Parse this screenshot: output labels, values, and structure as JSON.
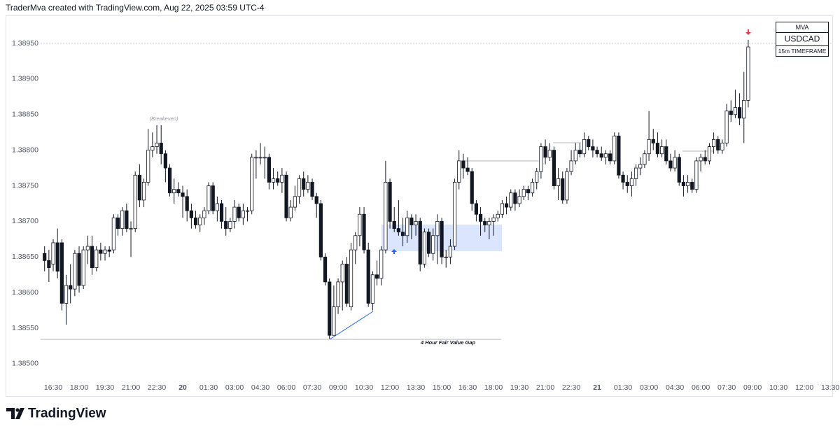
{
  "header": "TraderMva created with TradingView.com, Aug 22, 2025 03:59 UTC-4",
  "footer": "TradingView",
  "chart_data": {
    "type": "candlestick",
    "info_box": [
      "MVA",
      "USDCAD",
      "15m TIMEFRAME"
    ],
    "annotations": [
      "(Breakeven)",
      "4 Hour Fair Value Gap"
    ],
    "up_color": "#ffffff",
    "down_color": "#131722",
    "wick_color": "#131722",
    "grid": false,
    "ylim": [
      1.38475,
      1.3899
    ],
    "yticks": [
      {
        "value": 1.385,
        "label": "1.38500"
      },
      {
        "value": 1.3855,
        "label": "1.38550"
      },
      {
        "value": 1.386,
        "label": "1.38600"
      },
      {
        "value": 1.3865,
        "label": "1.38650"
      },
      {
        "value": 1.387,
        "label": "1.38700"
      },
      {
        "value": 1.3875,
        "label": "1.38750"
      },
      {
        "value": 1.388,
        "label": "1.38800"
      },
      {
        "value": 1.3885,
        "label": "1.38850"
      },
      {
        "value": 1.389,
        "label": "1.38900"
      },
      {
        "value": 1.3895,
        "label": "1.38950"
      }
    ],
    "categories": [
      null,
      null,
      "16:30",
      null,
      null,
      null,
      null,
      null,
      "18:00",
      null,
      null,
      null,
      null,
      null,
      "19:30",
      null,
      null,
      null,
      null,
      null,
      "21:00",
      null,
      null,
      null,
      null,
      null,
      "22:30",
      null,
      null,
      null,
      null,
      null,
      "20",
      null,
      null,
      null,
      null,
      null,
      "01:30",
      null,
      null,
      null,
      null,
      null,
      "03:00",
      null,
      null,
      null,
      null,
      null,
      "04:30",
      null,
      null,
      null,
      null,
      null,
      "06:00",
      null,
      null,
      null,
      null,
      null,
      "07:30",
      null,
      null,
      null,
      null,
      null,
      "09:00",
      null,
      null,
      null,
      null,
      null,
      "10:30",
      null,
      null,
      null,
      null,
      null,
      "12:00",
      null,
      null,
      null,
      null,
      null,
      "13:30",
      null,
      null,
      null,
      null,
      null,
      "15:00",
      null,
      null,
      null,
      null,
      null,
      "16:30",
      null,
      null,
      null,
      null,
      null,
      "18:00",
      null,
      null,
      null,
      null,
      null,
      "19:30",
      null,
      null,
      null,
      null,
      null,
      "21:00",
      null,
      null,
      null,
      null,
      null,
      "22:30",
      null,
      null,
      null,
      null,
      null,
      "21",
      null,
      null,
      null,
      null,
      null,
      "01:30",
      null,
      null,
      null,
      null,
      null,
      "03:00",
      null,
      null,
      null,
      null,
      null,
      "04:30",
      null,
      null,
      null,
      null,
      null,
      "06:00",
      null,
      null,
      null,
      null,
      null,
      "07:30",
      null,
      null,
      null,
      null,
      null,
      "09:00",
      null,
      null,
      null,
      null,
      null,
      "10:30",
      null,
      null,
      null,
      null,
      null,
      "12:00",
      null,
      null,
      null,
      null,
      null,
      "13:30"
    ],
    "open": [
      1.38655,
      1.38645,
      1.3864,
      1.3867,
      1.3867,
      1.38585,
      1.3861,
      1.38605,
      1.38655,
      1.3861,
      1.3866,
      1.38665,
      1.38635,
      1.3866,
      1.38655,
      1.3866,
      1.3866,
      1.38705,
      1.3869,
      1.38715,
      1.3869,
      1.3869,
      1.38765,
      1.3873,
      1.38755,
      1.388,
      1.38805,
      1.3881,
      1.38795,
      1.38775,
      1.3874,
      1.38745,
      1.3874,
      1.38735,
      1.38715,
      1.38705,
      1.38695,
      1.38705,
      1.38715,
      1.3875,
      1.38715,
      1.38725,
      1.387,
      1.3869,
      1.387,
      1.3872,
      1.38705,
      1.38715,
      1.38715,
      1.3879,
      1.3879,
      1.3879,
      1.3879,
      1.38755,
      1.3876,
      1.38755,
      1.38765,
      1.38705,
      1.3872,
      1.38735,
      1.3876,
      1.38745,
      1.38755,
      1.38735,
      1.38725,
      1.3865,
      1.38615,
      1.3854,
      1.3858,
      1.38615,
      1.3864,
      1.3858,
      1.3866,
      1.3868,
      1.3871,
      1.3866,
      1.38585,
      1.38625,
      1.3862,
      1.3866,
      1.38755,
      1.387,
      1.3869,
      1.38685,
      1.3868,
      1.38705,
      1.38695,
      1.387,
      1.3864,
      1.38685,
      1.38655,
      1.3868,
      1.387,
      1.3865,
      1.3865,
      1.38665,
      1.38755,
      1.38785,
      1.38775,
      1.3877,
      1.38725,
      1.3871,
      1.387,
      1.38695,
      1.387,
      1.38705,
      1.3871,
      1.38725,
      1.3872,
      1.3874,
      1.38725,
      1.38735,
      1.38745,
      1.3874,
      1.38755,
      1.3877,
      1.38805,
      1.3879,
      1.388,
      1.3875,
      1.3876,
      1.3873,
      1.3877,
      1.38785,
      1.388,
      1.38795,
      1.38815,
      1.38805,
      1.388,
      1.38795,
      1.3879,
      1.38795,
      1.38785,
      1.3882,
      1.38765,
      1.38755,
      1.3875,
      1.3876,
      1.38775,
      1.3878,
      1.38795,
      1.38815,
      1.3881,
      1.38795,
      1.38805,
      1.38785,
      1.38775,
      1.3879,
      1.38755,
      1.3875,
      1.38755,
      1.38745,
      1.38785,
      1.3879,
      1.38785,
      1.38805,
      1.38815,
      1.388,
      1.3881,
      1.38855,
      1.3885,
      1.3886,
      1.38845,
      1.3887,
      null,
      null,
      null,
      null,
      null,
      null,
      null,
      null,
      null,
      null,
      null,
      null,
      null,
      null,
      null,
      null,
      null,
      null,
      null
    ],
    "high": [
      1.38665,
      1.3866,
      1.38675,
      1.3869,
      1.38675,
      1.38625,
      1.3864,
      1.3866,
      1.38665,
      1.38665,
      1.3868,
      1.3868,
      1.38665,
      1.3867,
      1.38665,
      1.38665,
      1.3871,
      1.3871,
      1.3872,
      1.38725,
      1.387,
      1.3877,
      1.3878,
      1.3876,
      1.3883,
      1.38825,
      1.38835,
      1.38835,
      1.388,
      1.3878,
      1.3876,
      1.38755,
      1.3875,
      1.38745,
      1.38725,
      1.38715,
      1.3871,
      1.3872,
      1.38755,
      1.38755,
      1.38735,
      1.3873,
      1.3872,
      1.38705,
      1.3873,
      1.38725,
      1.38725,
      1.3872,
      1.38795,
      1.388,
      1.3881,
      1.38805,
      1.38795,
      1.38775,
      1.3877,
      1.38775,
      1.3877,
      1.3873,
      1.3875,
      1.38765,
      1.3877,
      1.38765,
      1.3876,
      1.3874,
      1.3873,
      1.38655,
      1.3862,
      1.3861,
      1.3862,
      1.38645,
      1.3865,
      1.3867,
      1.38685,
      1.3872,
      1.3872,
      1.3867,
      1.3863,
      1.38645,
      1.38665,
      1.38785,
      1.3876,
      1.3872,
      1.3873,
      1.38705,
      1.38715,
      1.3871,
      1.3871,
      1.38705,
      1.3869,
      1.3869,
      1.3869,
      1.3871,
      1.38705,
      1.3866,
      1.38675,
      1.3876,
      1.388,
      1.38795,
      1.3879,
      1.38775,
      1.3873,
      1.3872,
      1.38705,
      1.38705,
      1.3871,
      1.38715,
      1.3873,
      1.38735,
      1.38745,
      1.38745,
      1.38745,
      1.3875,
      1.3875,
      1.3876,
      1.38775,
      1.3881,
      1.38815,
      1.3881,
      1.38805,
      1.38775,
      1.3877,
      1.38775,
      1.388,
      1.3881,
      1.3881,
      1.38825,
      1.3882,
      1.38815,
      1.38805,
      1.38805,
      1.388,
      1.388,
      1.38825,
      1.38825,
      1.3877,
      1.38765,
      1.3877,
      1.3878,
      1.3879,
      1.388,
      1.38855,
      1.3883,
      1.38825,
      1.38815,
      1.38815,
      1.38795,
      1.388,
      1.38795,
      1.38765,
      1.38765,
      1.3876,
      1.3879,
      1.38795,
      1.388,
      1.3881,
      1.38825,
      1.3882,
      1.38815,
      1.38865,
      1.3887,
      1.38885,
      1.3888,
      1.3891,
      1.38955,
      null,
      null,
      null,
      null,
      null,
      null,
      null,
      null,
      null,
      null,
      null,
      null,
      null,
      null,
      null,
      null,
      null,
      null,
      null
    ],
    "low": [
      1.3863,
      1.38615,
      1.3863,
      1.3862,
      1.38575,
      1.38555,
      1.38585,
      1.38595,
      1.386,
      1.38605,
      1.3864,
      1.38625,
      1.3863,
      1.38645,
      1.38645,
      1.3865,
      1.38655,
      1.3868,
      1.3868,
      1.38685,
      1.3865,
      1.38685,
      1.3872,
      1.3872,
      1.3875,
      1.3879,
      1.38795,
      1.3878,
      1.38755,
      1.38735,
      1.38725,
      1.38735,
      1.38705,
      1.387,
      1.3869,
      1.3869,
      1.38685,
      1.38695,
      1.3871,
      1.3871,
      1.387,
      1.3869,
      1.3868,
      1.38685,
      1.3869,
      1.387,
      1.38695,
      1.387,
      1.3871,
      1.3876,
      1.3878,
      1.3876,
      1.38745,
      1.38745,
      1.3875,
      1.3874,
      1.387,
      1.387,
      1.38715,
      1.38725,
      1.38735,
      1.3874,
      1.3873,
      1.38705,
      1.38645,
      1.3861,
      1.38535,
      1.3854,
      1.3857,
      1.38575,
      1.3858,
      1.38575,
      1.3864,
      1.38665,
      1.38655,
      1.3858,
      1.38575,
      1.3861,
      1.3861,
      1.38655,
      1.3869,
      1.38685,
      1.3868,
      1.38665,
      1.3867,
      1.38675,
      1.3868,
      1.3863,
      1.38635,
      1.3865,
      1.38645,
      1.3864,
      1.3864,
      1.38635,
      1.3864,
      1.3866,
      1.38745,
      1.3876,
      1.38765,
      1.38715,
      1.387,
      1.3868,
      1.38685,
      1.38675,
      1.3868,
      1.387,
      1.38705,
      1.3871,
      1.38715,
      1.38715,
      1.3872,
      1.3873,
      1.3873,
      1.38735,
      1.38745,
      1.3876,
      1.3878,
      1.38785,
      1.38745,
      1.3873,
      1.38725,
      1.38725,
      1.38765,
      1.3878,
      1.3879,
      1.3879,
      1.388,
      1.3879,
      1.3879,
      1.38785,
      1.3878,
      1.3878,
      1.3878,
      1.3876,
      1.38745,
      1.3874,
      1.38735,
      1.3875,
      1.38765,
      1.38775,
      1.38785,
      1.388,
      1.3879,
      1.3879,
      1.3878,
      1.3877,
      1.3877,
      1.3875,
      1.38735,
      1.3874,
      1.3874,
      1.3874,
      1.3877,
      1.3878,
      1.3878,
      1.38795,
      1.38795,
      1.38795,
      1.38805,
      1.3884,
      1.38845,
      1.38835,
      1.3881,
      1.3886,
      null,
      null,
      null,
      null,
      null,
      null,
      null,
      null,
      null,
      null,
      null,
      null,
      null,
      null,
      null,
      null,
      null,
      null,
      null
    ],
    "close": [
      1.38645,
      1.38635,
      1.3867,
      1.3863,
      1.38585,
      1.3861,
      1.38605,
      1.38655,
      1.3861,
      1.3866,
      1.38665,
      1.38635,
      1.3866,
      1.38655,
      1.3866,
      1.38658,
      1.38705,
      1.3869,
      1.38715,
      1.3869,
      1.3869,
      1.38765,
      1.3873,
      1.38755,
      1.388,
      1.38805,
      1.3881,
      1.38795,
      1.38775,
      1.3874,
      1.38745,
      1.3874,
      1.38735,
      1.38715,
      1.38705,
      1.38695,
      1.38705,
      1.38715,
      1.3875,
      1.38715,
      1.38725,
      1.387,
      1.3869,
      1.387,
      1.3872,
      1.38705,
      1.38715,
      1.38715,
      1.3879,
      1.3879,
      1.3879,
      1.3879,
      1.38755,
      1.3876,
      1.38755,
      1.38765,
      1.38705,
      1.3872,
      1.38735,
      1.3876,
      1.38745,
      1.38755,
      1.38735,
      1.38725,
      1.3865,
      1.38615,
      1.3854,
      1.3858,
      1.38615,
      1.3864,
      1.38585,
      1.3866,
      1.3868,
      1.3871,
      1.3866,
      1.38585,
      1.38625,
      1.3862,
      1.3866,
      1.38755,
      1.387,
      1.3869,
      1.38685,
      1.3868,
      1.38705,
      1.38695,
      1.387,
      1.3864,
      1.38685,
      1.38655,
      1.3868,
      1.387,
      1.3865,
      1.3865,
      1.38665,
      1.38755,
      1.38785,
      1.38775,
      1.3877,
      1.38725,
      1.3871,
      1.387,
      1.38695,
      1.387,
      1.38705,
      1.3871,
      1.38725,
      1.3872,
      1.3874,
      1.38725,
      1.38735,
      1.38745,
      1.3874,
      1.38755,
      1.3877,
      1.38805,
      1.3879,
      1.388,
      1.3875,
      1.3876,
      1.3873,
      1.3877,
      1.38785,
      1.388,
      1.38795,
      1.38815,
      1.38805,
      1.388,
      1.38795,
      1.3879,
      1.38795,
      1.38785,
      1.3882,
      1.38765,
      1.38755,
      1.3875,
      1.3876,
      1.38775,
      1.3878,
      1.38795,
      1.38815,
      1.3881,
      1.38795,
      1.38805,
      1.38785,
      1.38775,
      1.3879,
      1.38755,
      1.3875,
      1.38755,
      1.38745,
      1.38785,
      1.3879,
      1.38785,
      1.38805,
      1.38815,
      1.388,
      1.3881,
      1.38855,
      1.3885,
      1.3886,
      1.38845,
      1.3887,
      1.38945,
      null,
      null,
      null,
      null,
      null,
      null,
      null,
      null,
      null,
      null,
      null,
      null,
      null,
      null,
      null,
      null,
      null,
      null,
      null
    ]
  }
}
